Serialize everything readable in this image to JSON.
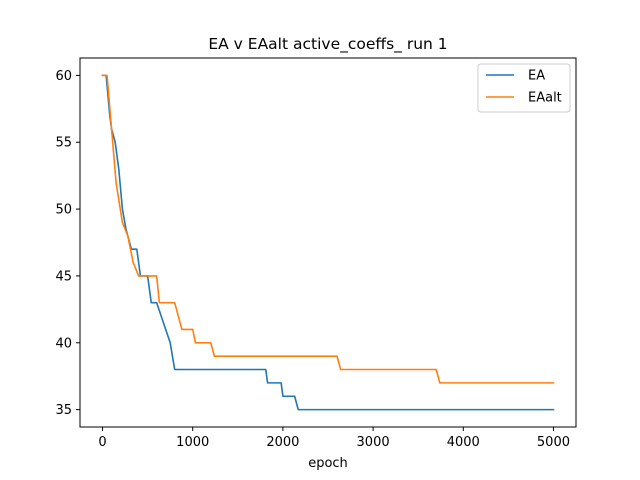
{
  "chart_data": {
    "type": "line",
    "title": "EA v EAalt active_coeffs_ run 1",
    "xlabel": "epoch",
    "ylabel": "",
    "xlim": [
      -250,
      5250
    ],
    "ylim": [
      33.7,
      61.3
    ],
    "xticks": [
      0,
      1000,
      2000,
      3000,
      4000,
      5000
    ],
    "yticks": [
      35,
      40,
      45,
      50,
      55,
      60
    ],
    "grid": false,
    "legend_position": "top-right",
    "series": [
      {
        "name": "EA",
        "color": "#1f77b4",
        "points": [
          [
            0,
            60
          ],
          [
            40,
            60
          ],
          [
            80,
            57
          ],
          [
            100,
            56
          ],
          [
            140,
            55
          ],
          [
            180,
            53
          ],
          [
            220,
            50
          ],
          [
            260,
            48.5
          ],
          [
            320,
            47
          ],
          [
            380,
            47
          ],
          [
            420,
            45
          ],
          [
            500,
            45
          ],
          [
            540,
            43
          ],
          [
            600,
            43
          ],
          [
            650,
            42
          ],
          [
            700,
            41
          ],
          [
            750,
            40
          ],
          [
            800,
            38
          ],
          [
            1000,
            38
          ],
          [
            1500,
            38
          ],
          [
            1810,
            38
          ],
          [
            1830,
            37
          ],
          [
            1980,
            37
          ],
          [
            2000,
            36
          ],
          [
            2130,
            36
          ],
          [
            2170,
            35
          ],
          [
            2200,
            35
          ],
          [
            3000,
            35
          ],
          [
            4000,
            35
          ],
          [
            5000,
            35
          ]
        ]
      },
      {
        "name": "EAalt",
        "color": "#ff7f0e",
        "points": [
          [
            0,
            60
          ],
          [
            50,
            60
          ],
          [
            100,
            56
          ],
          [
            150,
            52
          ],
          [
            220,
            49
          ],
          [
            280,
            48
          ],
          [
            340,
            46
          ],
          [
            400,
            45
          ],
          [
            600,
            45
          ],
          [
            630,
            43
          ],
          [
            800,
            43
          ],
          [
            880,
            41
          ],
          [
            1000,
            41
          ],
          [
            1030,
            40
          ],
          [
            1200,
            40
          ],
          [
            1240,
            39
          ],
          [
            2600,
            39
          ],
          [
            2640,
            38
          ],
          [
            3700,
            38
          ],
          [
            3740,
            37
          ],
          [
            5000,
            37
          ]
        ]
      }
    ]
  }
}
